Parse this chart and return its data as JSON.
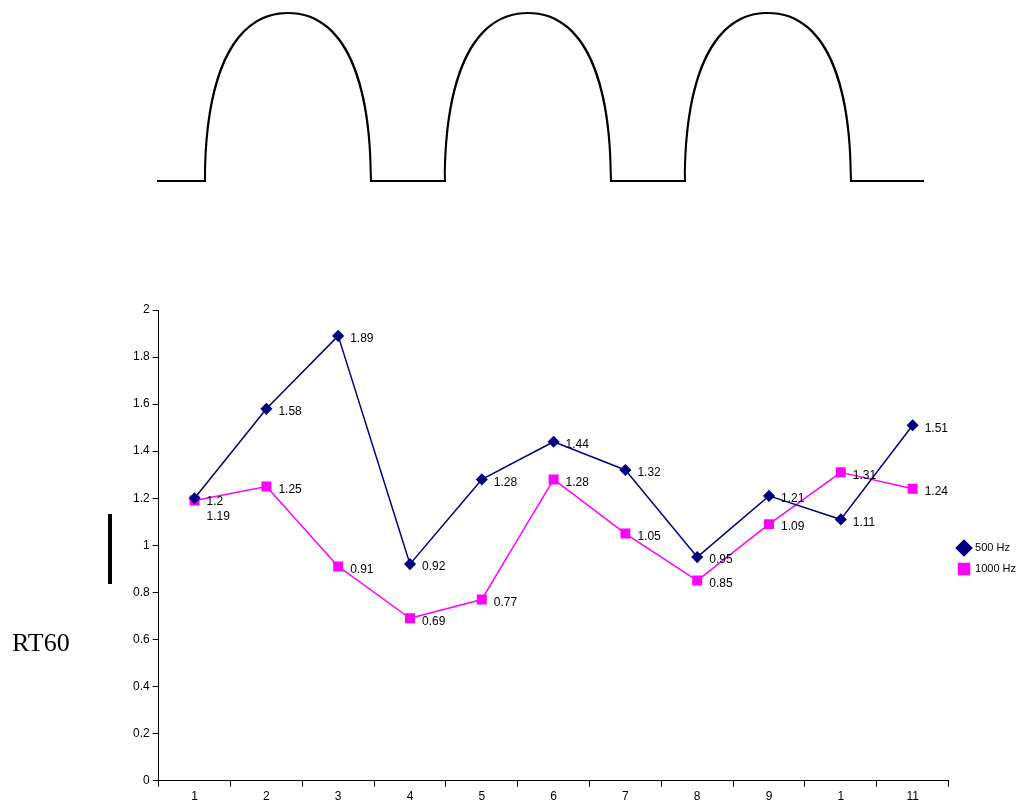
{
  "chart_data": {
    "type": "line",
    "ylabel": "RT60",
    "categories": [
      "1",
      "2",
      "3",
      "4",
      "5",
      "6",
      "7",
      "8",
      "9",
      "1",
      "11"
    ],
    "series": [
      {
        "name": "500 Hz",
        "color": "#000080",
        "marker": "diamond",
        "values": [
          1.2,
          1.58,
          1.89,
          0.92,
          1.28,
          1.44,
          1.32,
          0.95,
          1.21,
          1.11,
          1.51
        ]
      },
      {
        "name": "1000 Hz",
        "color": "#ff00ff",
        "marker": "square",
        "values": [
          1.19,
          1.25,
          0.91,
          0.69,
          0.77,
          1.28,
          1.05,
          0.85,
          1.09,
          1.31,
          1.24
        ]
      }
    ],
    "ylim": [
      0,
      2
    ],
    "yticks": [
      0,
      0.2,
      0.4,
      0.6,
      0.8,
      1,
      1.2,
      1.4,
      1.6,
      1.8,
      2
    ],
    "grid": false,
    "legend": "right",
    "data_labels": true
  }
}
